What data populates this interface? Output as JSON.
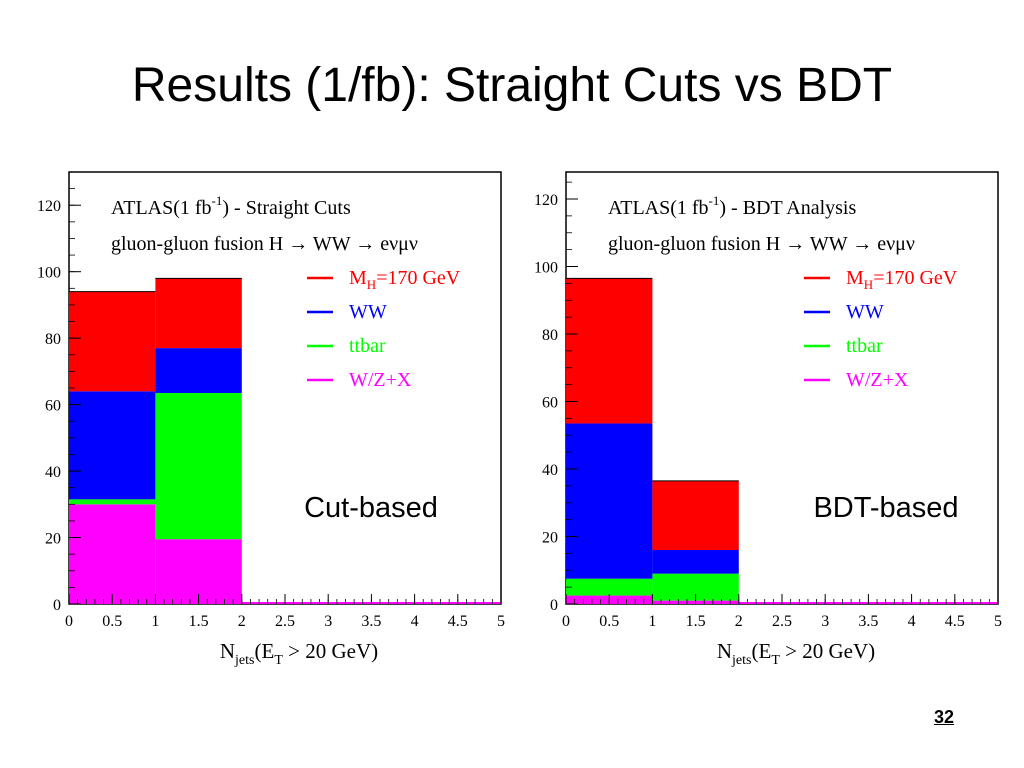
{
  "slide": {
    "title": "Results (1/fb): Straight Cuts vs BDT",
    "page_number": "32"
  },
  "colors": {
    "signal": "#ff0000",
    "ww": "#0000ff",
    "ttbar": "#00ff00",
    "wzx": "#ff00ff"
  },
  "chart_data": [
    {
      "type": "bar",
      "stacked": true,
      "title_line1": "ATLAS(1 fb-1) - Straight Cuts",
      "title_line2": "gluon-gluon fusion H → WW → eνμν",
      "overlay_label": "Cut-based",
      "xlabel": "Njets(ET > 20 GeV)",
      "xlim": [
        0,
        5
      ],
      "ylim": [
        0,
        130
      ],
      "x_ticks": [
        "0",
        "0.5",
        "1",
        "1.5",
        "2",
        "2.5",
        "3",
        "3.5",
        "4",
        "4.5",
        "5"
      ],
      "y_ticks": [
        "0",
        "20",
        "40",
        "60",
        "80",
        "100",
        "120"
      ],
      "bins": [
        [
          0,
          1
        ],
        [
          1,
          2
        ]
      ],
      "legend_position": "top-right",
      "series": [
        {
          "name": "W/Z+X",
          "color": "#ff00ff",
          "values": [
            30,
            19.5
          ]
        },
        {
          "name": "ttbar",
          "color": "#00ff00",
          "values": [
            1.5,
            44
          ]
        },
        {
          "name": "WW",
          "color": "#0000ff",
          "values": [
            32.5,
            13.5
          ]
        },
        {
          "name": "MH=170 GeV",
          "color": "#ff0000",
          "values": [
            30,
            21
          ]
        }
      ],
      "legend": [
        {
          "main": "M",
          "sub": "H",
          "rest": "=170 GeV",
          "color": "#ff0000"
        },
        {
          "main": "WW",
          "sub": "",
          "rest": "",
          "color": "#0000ff"
        },
        {
          "main": "ttbar",
          "sub": "",
          "rest": "",
          "color": "#00ff00"
        },
        {
          "main": "W/Z+X",
          "sub": "",
          "rest": "",
          "color": "#ff00ff"
        }
      ]
    },
    {
      "type": "bar",
      "stacked": true,
      "title_line1": "ATLAS(1 fb-1) - BDT Analysis",
      "title_line2": "gluon-gluon fusion H → WW → eνμν",
      "overlay_label": "BDT-based",
      "xlabel": "Njets(ET > 20 GeV)",
      "xlim": [
        0,
        5
      ],
      "ylim": [
        0,
        128
      ],
      "x_ticks": [
        "0",
        "0.5",
        "1",
        "1.5",
        "2",
        "2.5",
        "3",
        "3.5",
        "4",
        "4.5",
        "5"
      ],
      "y_ticks": [
        "0",
        "20",
        "40",
        "60",
        "80",
        "100",
        "120"
      ],
      "bins": [
        [
          0,
          1
        ],
        [
          1,
          2
        ]
      ],
      "legend_position": "top-right",
      "series": [
        {
          "name": "W/Z+X",
          "color": "#ff00ff",
          "values": [
            2.5,
            1
          ]
        },
        {
          "name": "ttbar",
          "color": "#00ff00",
          "values": [
            5,
            8
          ]
        },
        {
          "name": "WW",
          "color": "#0000ff",
          "values": [
            46,
            7
          ]
        },
        {
          "name": "MH=170 GeV",
          "color": "#ff0000",
          "values": [
            43,
            20.5
          ]
        }
      ],
      "legend": [
        {
          "main": "M",
          "sub": "H",
          "rest": "=170 GeV",
          "color": "#ff0000"
        },
        {
          "main": "WW",
          "sub": "",
          "rest": "",
          "color": "#0000ff"
        },
        {
          "main": "ttbar",
          "sub": "",
          "rest": "",
          "color": "#00ff00"
        },
        {
          "main": "W/Z+X",
          "sub": "",
          "rest": "",
          "color": "#ff00ff"
        }
      ]
    }
  ]
}
